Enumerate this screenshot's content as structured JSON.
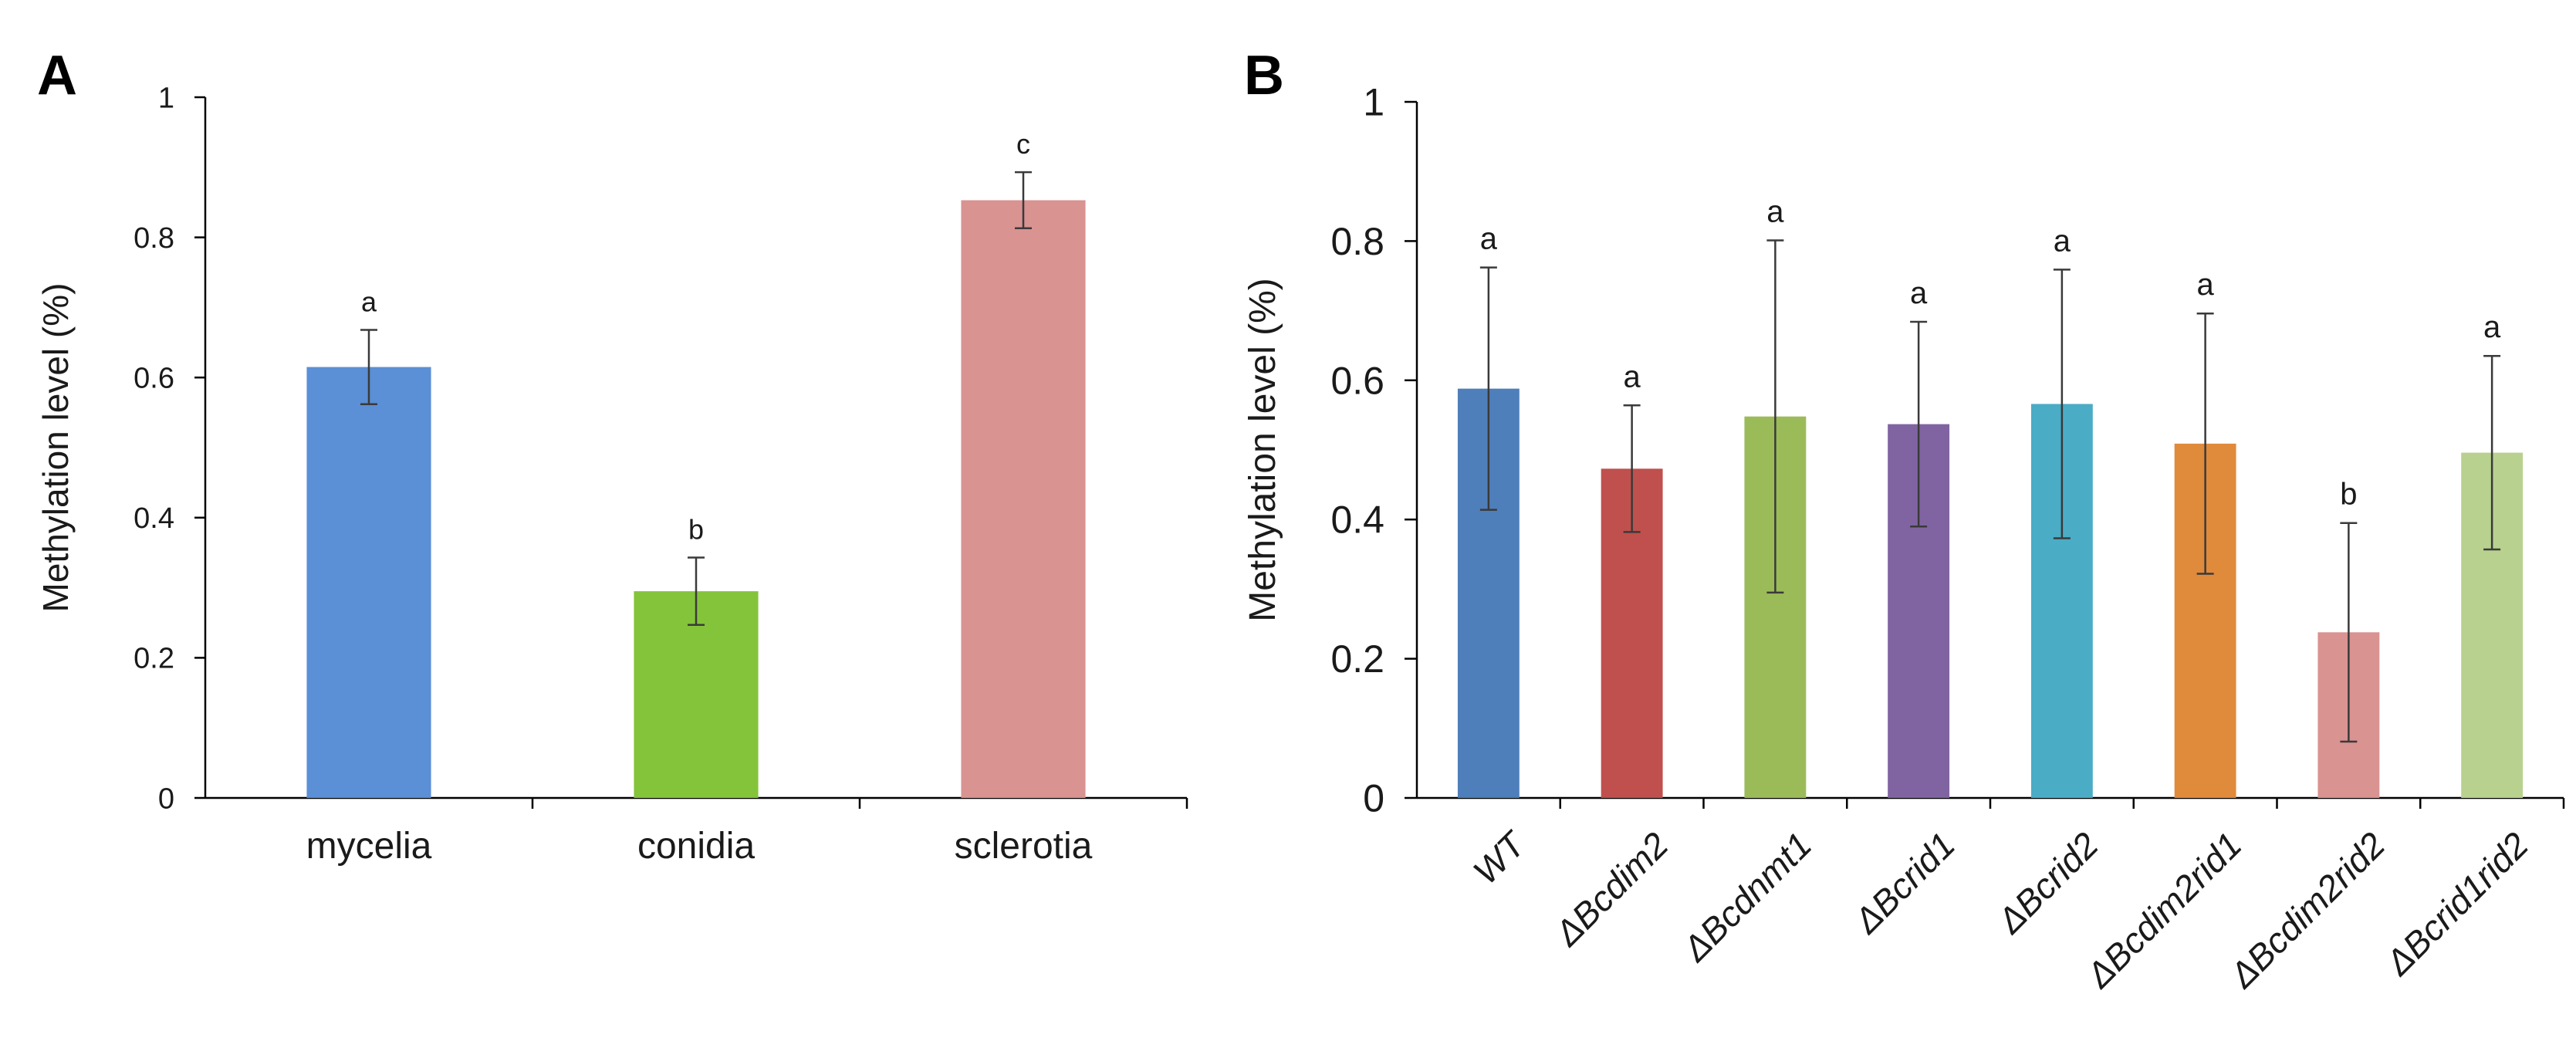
{
  "chart_data": [
    {
      "panel": "A",
      "type": "bar",
      "ylabel": "Methylation level (%)",
      "ylim": [
        0,
        1
      ],
      "yticks": [
        "0",
        "0.2",
        "0.4",
        "0.6",
        "0.8",
        "1"
      ],
      "yticks_values": [
        0,
        0.2,
        0.4,
        0.6,
        0.8,
        1
      ],
      "categories": [
        "mycelia",
        "conidia",
        "sclerotia"
      ],
      "values": [
        0.615,
        0.295,
        0.853
      ],
      "errors": [
        0.053,
        0.048,
        0.04
      ],
      "significance": [
        "a",
        "b",
        "c"
      ],
      "colors": [
        "#5b8fd6",
        "#84c43a",
        "#d99391"
      ],
      "italic_labels": false
    },
    {
      "panel": "B",
      "type": "bar",
      "ylabel": "Methylation level (%)",
      "ylim": [
        0,
        1
      ],
      "yticks": [
        "0",
        "0.2",
        "0.4",
        "0.6",
        "0.8",
        "1"
      ],
      "yticks_values": [
        0,
        0.2,
        0.4,
        0.6,
        0.8,
        1
      ],
      "categories": [
        "WT",
        "ΔBcdim2",
        "ΔBcdnmt1",
        "ΔBcrid1",
        "ΔBcrid2",
        "ΔBcdim2rid1",
        "ΔBcdim2rid2",
        "ΔBcrid1rid2"
      ],
      "values": [
        0.588,
        0.473,
        0.548,
        0.537,
        0.566,
        0.509,
        0.238,
        0.496
      ],
      "errors": [
        0.174,
        0.091,
        0.253,
        0.147,
        0.193,
        0.187,
        0.157,
        0.139
      ],
      "significance": [
        "a",
        "a",
        "a",
        "a",
        "a",
        "a",
        "b",
        "a"
      ],
      "colors": [
        "#4f7fba",
        "#c0504d",
        "#9bbb59",
        "#8064a2",
        "#4bacc6",
        "#e08a3c",
        "#d99391",
        "#b8d18f"
      ],
      "italic_labels": true
    }
  ]
}
